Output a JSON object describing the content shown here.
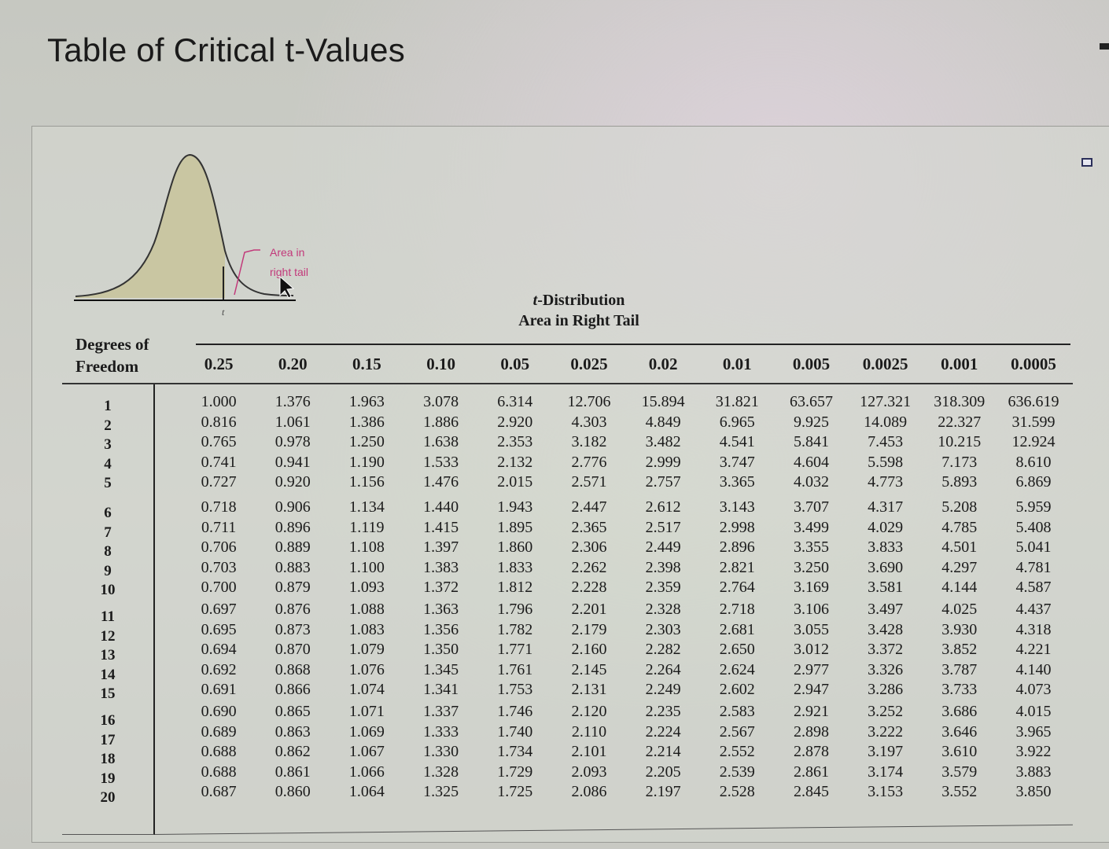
{
  "page": {
    "title": "Table of Critical t-Values"
  },
  "diagram": {
    "annotation_line1": "Area in",
    "annotation_line2": "right tail",
    "axis_label": "t",
    "fill_color": "#c9c6a2",
    "annotation_color": "#c2397a"
  },
  "table": {
    "title_italic": "t",
    "title_rest": "-Distribution",
    "subtitle": "Area in Right Tail",
    "dof_header_line1": "Degrees of",
    "dof_header_line2": "Freedom",
    "columns": [
      "0.25",
      "0.20",
      "0.15",
      "0.10",
      "0.05",
      "0.025",
      "0.02",
      "0.01",
      "0.005",
      "0.0025",
      "0.001",
      "0.0005"
    ],
    "groups": [
      {
        "rows": [
          {
            "df": "1",
            "values": [
              "1.000",
              "1.376",
              "1.963",
              "3.078",
              "6.314",
              "12.706",
              "15.894",
              "31.821",
              "63.657",
              "127.321",
              "318.309",
              "636.619"
            ]
          },
          {
            "df": "2",
            "values": [
              "0.816",
              "1.061",
              "1.386",
              "1.886",
              "2.920",
              "4.303",
              "4.849",
              "6.965",
              "9.925",
              "14.089",
              "22.327",
              "31.599"
            ]
          },
          {
            "df": "3",
            "values": [
              "0.765",
              "0.978",
              "1.250",
              "1.638",
              "2.353",
              "3.182",
              "3.482",
              "4.541",
              "5.841",
              "7.453",
              "10.215",
              "12.924"
            ]
          },
          {
            "df": "4",
            "values": [
              "0.741",
              "0.941",
              "1.190",
              "1.533",
              "2.132",
              "2.776",
              "2.999",
              "3.747",
              "4.604",
              "5.598",
              "7.173",
              "8.610"
            ]
          },
          {
            "df": "5",
            "values": [
              "0.727",
              "0.920",
              "1.156",
              "1.476",
              "2.015",
              "2.571",
              "2.757",
              "3.365",
              "4.032",
              "4.773",
              "5.893",
              "6.869"
            ]
          }
        ]
      },
      {
        "rows": [
          {
            "df": "6",
            "values": [
              "0.718",
              "0.906",
              "1.134",
              "1.440",
              "1.943",
              "2.447",
              "2.612",
              "3.143",
              "3.707",
              "4.317",
              "5.208",
              "5.959"
            ]
          },
          {
            "df": "7",
            "values": [
              "0.711",
              "0.896",
              "1.119",
              "1.415",
              "1.895",
              "2.365",
              "2.517",
              "2.998",
              "3.499",
              "4.029",
              "4.785",
              "5.408"
            ]
          },
          {
            "df": "8",
            "values": [
              "0.706",
              "0.889",
              "1.108",
              "1.397",
              "1.860",
              "2.306",
              "2.449",
              "2.896",
              "3.355",
              "3.833",
              "4.501",
              "5.041"
            ]
          },
          {
            "df": "9",
            "values": [
              "0.703",
              "0.883",
              "1.100",
              "1.383",
              "1.833",
              "2.262",
              "2.398",
              "2.821",
              "3.250",
              "3.690",
              "4.297",
              "4.781"
            ]
          },
          {
            "df": "10",
            "values": [
              "0.700",
              "0.879",
              "1.093",
              "1.372",
              "1.812",
              "2.228",
              "2.359",
              "2.764",
              "3.169",
              "3.581",
              "4.144",
              "4.587"
            ]
          }
        ]
      },
      {
        "rows": [
          {
            "df": "11",
            "values": [
              "0.697",
              "0.876",
              "1.088",
              "1.363",
              "1.796",
              "2.201",
              "2.328",
              "2.718",
              "3.106",
              "3.497",
              "4.025",
              "4.437"
            ]
          },
          {
            "df": "12",
            "values": [
              "0.695",
              "0.873",
              "1.083",
              "1.356",
              "1.782",
              "2.179",
              "2.303",
              "2.681",
              "3.055",
              "3.428",
              "3.930",
              "4.318"
            ]
          },
          {
            "df": "13",
            "values": [
              "0.694",
              "0.870",
              "1.079",
              "1.350",
              "1.771",
              "2.160",
              "2.282",
              "2.650",
              "3.012",
              "3.372",
              "3.852",
              "4.221"
            ]
          },
          {
            "df": "14",
            "values": [
              "0.692",
              "0.868",
              "1.076",
              "1.345",
              "1.761",
              "2.145",
              "2.264",
              "2.624",
              "2.977",
              "3.326",
              "3.787",
              "4.140"
            ]
          },
          {
            "df": "15",
            "values": [
              "0.691",
              "0.866",
              "1.074",
              "1.341",
              "1.753",
              "2.131",
              "2.249",
              "2.602",
              "2.947",
              "3.286",
              "3.733",
              "4.073"
            ]
          }
        ]
      },
      {
        "rows": [
          {
            "df": "16",
            "values": [
              "0.690",
              "0.865",
              "1.071",
              "1.337",
              "1.746",
              "2.120",
              "2.235",
              "2.583",
              "2.921",
              "3.252",
              "3.686",
              "4.015"
            ]
          },
          {
            "df": "17",
            "values": [
              "0.689",
              "0.863",
              "1.069",
              "1.333",
              "1.740",
              "2.110",
              "2.224",
              "2.567",
              "2.898",
              "3.222",
              "3.646",
              "3.965"
            ]
          },
          {
            "df": "18",
            "values": [
              "0.688",
              "0.862",
              "1.067",
              "1.330",
              "1.734",
              "2.101",
              "2.214",
              "2.552",
              "2.878",
              "3.197",
              "3.610",
              "3.922"
            ]
          },
          {
            "df": "19",
            "values": [
              "0.688",
              "0.861",
              "1.066",
              "1.328",
              "1.729",
              "2.093",
              "2.205",
              "2.539",
              "2.861",
              "3.174",
              "3.579",
              "3.883"
            ]
          },
          {
            "df": "20",
            "values": [
              "0.687",
              "0.860",
              "1.064",
              "1.325",
              "1.725",
              "2.086",
              "2.197",
              "2.528",
              "2.845",
              "3.153",
              "3.552",
              "3.850"
            ]
          }
        ]
      }
    ]
  }
}
